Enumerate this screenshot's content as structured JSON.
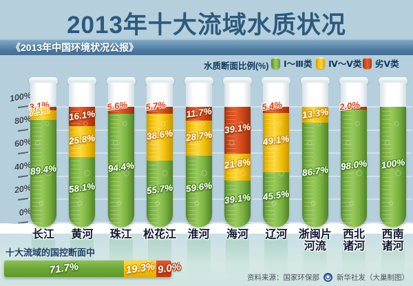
{
  "header": {
    "title": "2013年十大流域水质状况",
    "subtitle": "《2013年中国环境状况公报》"
  },
  "legend": {
    "title": "水质断面比例(%)",
    "items": [
      {
        "label": "Ⅰ～Ⅲ类",
        "color": "#76ad3b",
        "key": "good"
      },
      {
        "label": "Ⅳ～Ⅴ类",
        "color": "#f5c30a",
        "key": "fair"
      },
      {
        "label": "劣Ⅴ类",
        "color": "#d64a1a",
        "key": "poor"
      }
    ]
  },
  "chart_data": {
    "type": "bar",
    "stacked": true,
    "title": "2013年十大流域水质状况",
    "ylabel": "水质断面比例(%)",
    "ylim": [
      0,
      100
    ],
    "yticks": [
      "0%",
      "20%",
      "40%",
      "60%",
      "80%",
      "100%"
    ],
    "grid": true,
    "categories": [
      "长江",
      "黄河",
      "珠江",
      "松花江",
      "淮河",
      "海河",
      "辽河",
      "浙闽片河流",
      "西北诸河",
      "西南诸河"
    ],
    "category_lines": [
      [
        "长江"
      ],
      [
        "黄河"
      ],
      [
        "珠江"
      ],
      [
        "松花江"
      ],
      [
        "淮河"
      ],
      [
        "海河"
      ],
      [
        "辽河"
      ],
      [
        "浙闽片",
        "河流"
      ],
      [
        "西北",
        "诸河"
      ],
      [
        "西南",
        "诸河"
      ]
    ],
    "series": [
      {
        "name": "Ⅰ～Ⅲ类",
        "key": "good",
        "color": "#76ad3b",
        "values": [
          89.4,
          58.1,
          94.4,
          55.7,
          59.6,
          39.1,
          45.5,
          86.7,
          98.0,
          100.0
        ],
        "labels": [
          "89.4%",
          "58.1%",
          "94.4%",
          "55.7%",
          "59.6%",
          "39.1%",
          "45.5%",
          "86.7%",
          "98.0%",
          "100%"
        ]
      },
      {
        "name": "Ⅳ～Ⅴ类",
        "key": "fair",
        "color": "#f5c30a",
        "values": [
          7.5,
          25.8,
          0,
          38.6,
          28.7,
          21.8,
          49.1,
          13.3,
          0,
          0
        ],
        "labels": [
          "7.5%",
          "25.8%",
          "",
          "38.6%",
          "28.7%",
          "21.8%",
          "49.1%",
          "13.3%",
          "",
          ""
        ]
      },
      {
        "name": "劣Ⅴ类",
        "key": "poor",
        "color": "#d64a1a",
        "values": [
          3.1,
          16.1,
          5.6,
          5.7,
          11.7,
          39.1,
          5.4,
          0,
          2.0,
          0
        ],
        "labels": [
          "3.1%",
          "16.1%",
          "5.6%",
          "5.7%",
          "11.7%",
          "39.1%",
          "5.4%",
          "",
          "2.0%",
          ""
        ]
      }
    ]
  },
  "summary": {
    "label": "十大流域的国控断面中",
    "bar": [
      {
        "category": "Ⅰ～Ⅲ类",
        "key": "good",
        "value": 71.7,
        "text": "71.7%"
      },
      {
        "category": "Ⅳ～Ⅴ类",
        "key": "fair",
        "value": 19.3,
        "text": "19.3%"
      },
      {
        "category": "劣Ⅴ类",
        "key": "poor",
        "value": 9.0,
        "text": "9.0%"
      }
    ]
  },
  "footer": {
    "source": "资料来源：国家环保部",
    "credit": "新华社发（大巢制图）"
  }
}
